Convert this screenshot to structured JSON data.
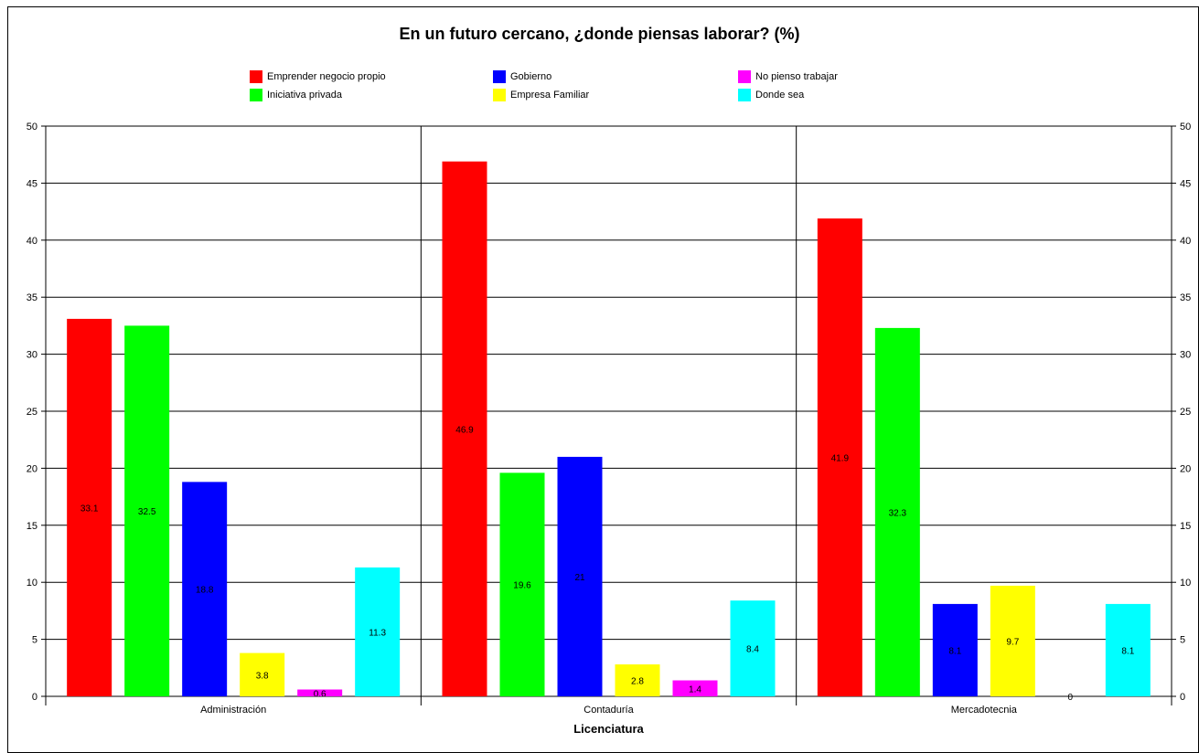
{
  "chart_data": {
    "type": "bar",
    "title": "En un futuro cercano, ¿donde piensas laborar? (%)",
    "xlabel": "Licenciatura",
    "ylabel": "",
    "ylim": [
      0,
      50
    ],
    "yticks": [
      0,
      5,
      10,
      15,
      20,
      25,
      30,
      35,
      40,
      45,
      50
    ],
    "grid": true,
    "legend_position": "top",
    "categories": [
      "Administración",
      "Contaduría",
      "Mercadotecnia"
    ],
    "series": [
      {
        "name": "Emprender negocio propio",
        "color": "#ff0000",
        "values": [
          33.1,
          46.9,
          41.9
        ]
      },
      {
        "name": "Iniciativa privada",
        "color": "#00ff00",
        "values": [
          32.5,
          19.6,
          32.3
        ]
      },
      {
        "name": "Gobierno",
        "color": "#0000ff",
        "values": [
          18.8,
          21,
          8.1
        ]
      },
      {
        "name": "Empresa Familiar",
        "color": "#ffff00",
        "values": [
          3.8,
          2.8,
          9.7
        ]
      },
      {
        "name": "No pienso trabajar",
        "color": "#ff00ff",
        "values": [
          0.6,
          1.4,
          0
        ]
      },
      {
        "name": "Donde sea",
        "color": "#00ffff",
        "values": [
          11.3,
          8.4,
          8.1
        ]
      }
    ]
  }
}
